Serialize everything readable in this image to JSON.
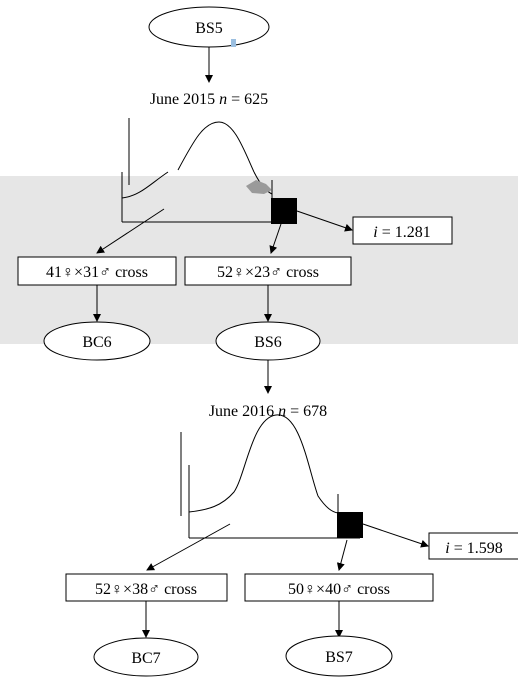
{
  "nodes": {
    "bs5": "BS5",
    "bc6": "BC6",
    "bs6": "BS6",
    "bc7": "BC7",
    "bs7": "BS7"
  },
  "generation_2015": {
    "label_prefix": "June 2015 ",
    "n_symbol": "n",
    "n_value": " = 625",
    "i_symbol": "i",
    "i_value": " = 1.281",
    "cross_left": "41♀×31♂ cross",
    "cross_right": "52♀×23♂ cross"
  },
  "generation_2016": {
    "label_prefix": "June 2016 ",
    "n_symbol": "n",
    "n_value": " = 678",
    "i_symbol": "i",
    "i_value": " = 1.598",
    "cross_left": "52♀×38♂ cross",
    "cross_right": "50♀×40♂ cross"
  }
}
